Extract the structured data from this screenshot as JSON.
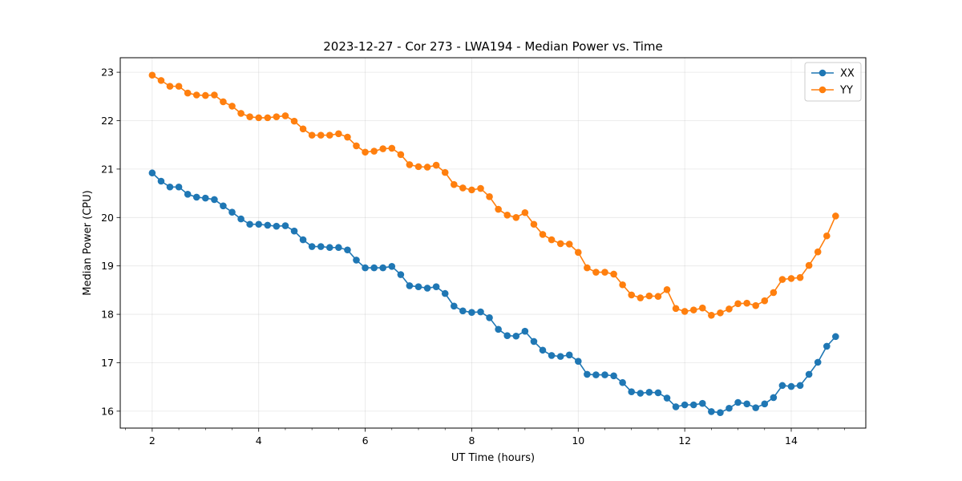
{
  "chart_data": {
    "type": "line",
    "title": "2023-12-27 - Cor 273 - LWA194 - Median Power vs. Time",
    "xlabel": "UT Time (hours)",
    "ylabel": "Median Power (CPU)",
    "xlim": [
      1.4,
      15.4
    ],
    "ylim": [
      15.65,
      23.3
    ],
    "xticks": [
      2,
      4,
      6,
      8,
      10,
      12,
      14
    ],
    "yticks": [
      16,
      17,
      18,
      19,
      20,
      21,
      22,
      23
    ],
    "grid": true,
    "legend_position": "top-right",
    "x": [
      2.0,
      2.167,
      2.333,
      2.5,
      2.667,
      2.833,
      3.0,
      3.167,
      3.333,
      3.5,
      3.667,
      3.833,
      4.0,
      4.167,
      4.333,
      4.5,
      4.667,
      4.833,
      5.0,
      5.167,
      5.333,
      5.5,
      5.667,
      5.833,
      6.0,
      6.167,
      6.333,
      6.5,
      6.667,
      6.833,
      7.0,
      7.167,
      7.333,
      7.5,
      7.667,
      7.833,
      8.0,
      8.167,
      8.333,
      8.5,
      8.667,
      8.833,
      9.0,
      9.167,
      9.333,
      9.5,
      9.667,
      9.833,
      10.0,
      10.167,
      10.333,
      10.5,
      10.667,
      10.833,
      11.0,
      11.167,
      11.333,
      11.5,
      11.667,
      11.833,
      12.0,
      12.167,
      12.333,
      12.5,
      12.667,
      12.833,
      13.0,
      13.167,
      13.333,
      13.5,
      13.667,
      13.833,
      14.0,
      14.167,
      14.333,
      14.5,
      14.667,
      14.833
    ],
    "series": [
      {
        "name": "XX",
        "color": "#1f77b4",
        "values": [
          20.92,
          20.75,
          20.63,
          20.63,
          20.48,
          20.42,
          20.4,
          20.37,
          20.24,
          20.11,
          19.97,
          19.86,
          19.86,
          19.84,
          19.82,
          19.83,
          19.72,
          19.54,
          19.4,
          19.4,
          19.38,
          19.38,
          19.33,
          19.12,
          18.96,
          18.96,
          18.96,
          18.99,
          18.82,
          18.59,
          18.57,
          18.54,
          18.57,
          18.43,
          18.17,
          18.07,
          18.04,
          18.05,
          17.93,
          17.69,
          17.56,
          17.55,
          17.65,
          17.44,
          17.26,
          17.15,
          17.13,
          17.16,
          17.03,
          16.76,
          16.75,
          16.75,
          16.73,
          16.59,
          16.4,
          16.37,
          16.39,
          16.38,
          16.27,
          16.09,
          16.13,
          16.13,
          16.16,
          15.99,
          15.97,
          16.06,
          16.18,
          16.15,
          16.07,
          16.15,
          16.28,
          16.53,
          16.51,
          16.53,
          16.76,
          17.01,
          17.34,
          17.54
        ]
      },
      {
        "name": "YY",
        "color": "#ff7f0e",
        "values": [
          22.94,
          22.83,
          22.71,
          22.71,
          22.57,
          22.53,
          22.52,
          22.53,
          22.39,
          22.3,
          22.15,
          22.08,
          22.06,
          22.06,
          22.08,
          22.1,
          21.99,
          21.83,
          21.7,
          21.7,
          21.7,
          21.73,
          21.66,
          21.48,
          21.35,
          21.37,
          21.42,
          21.43,
          21.3,
          21.09,
          21.05,
          21.04,
          21.08,
          20.93,
          20.68,
          20.61,
          20.57,
          20.6,
          20.43,
          20.17,
          20.05,
          20.0,
          20.1,
          19.86,
          19.65,
          19.54,
          19.46,
          19.45,
          19.28,
          18.96,
          18.87,
          18.87,
          18.83,
          18.61,
          18.4,
          18.34,
          18.38,
          18.37,
          18.51,
          18.12,
          18.06,
          18.09,
          18.13,
          17.98,
          18.03,
          18.11,
          18.22,
          18.23,
          18.18,
          18.28,
          18.45,
          18.72,
          18.74,
          18.76,
          19.01,
          19.29,
          19.62,
          20.03
        ]
      }
    ]
  }
}
